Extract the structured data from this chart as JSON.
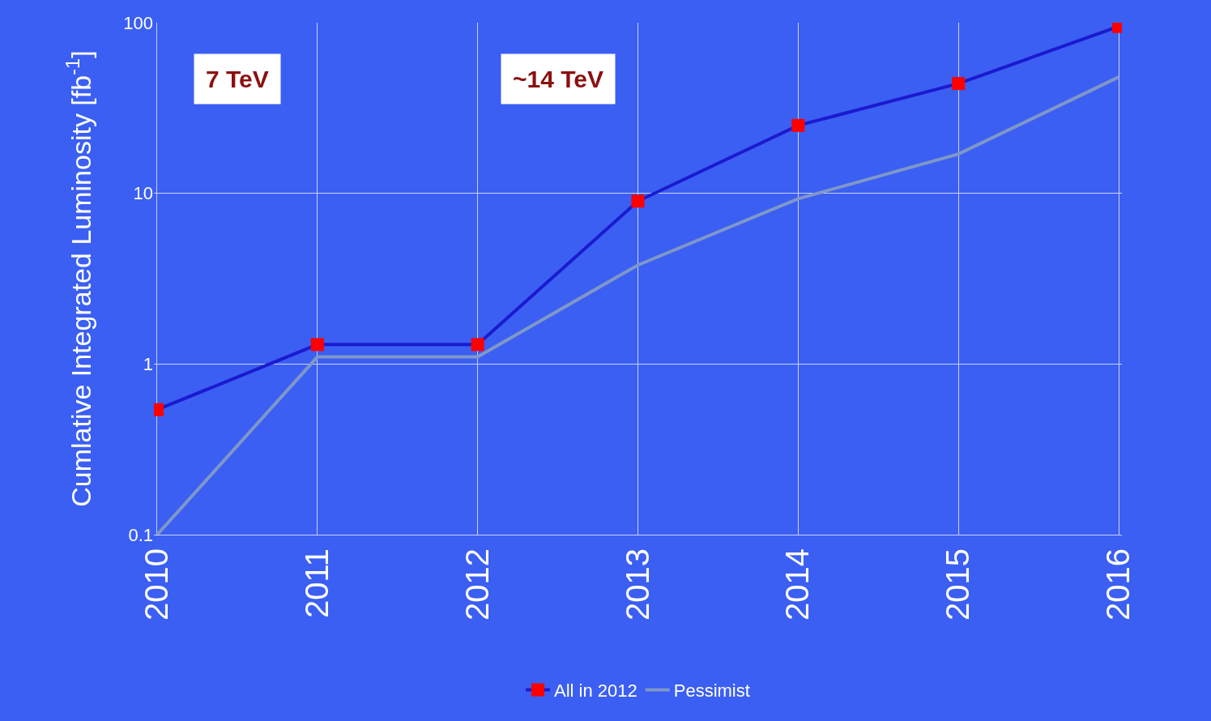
{
  "chart_data": {
    "type": "line",
    "ylabel": "Cumlative Integrated Luminosity [fb$^{-1}$]",
    "categories": [
      "2010",
      "2011",
      "2012",
      "2013",
      "2014",
      "2015",
      "2016"
    ],
    "series": [
      {
        "name": "All in 2012",
        "color": "#1a1ad0",
        "colors": [
          "#ff0000",
          "#ff0000",
          "#ff0000",
          "#ff0000",
          "#ff0000",
          "#ff0000",
          "#ff0000"
        ],
        "marker": "square",
        "values": [
          0.54,
          1.3,
          1.3,
          9,
          25,
          44,
          95
        ]
      },
      {
        "name": "Pessimist",
        "color": "#7f97c9",
        "marker": "none",
        "values": [
          0.1,
          1.1,
          1.1,
          3.8,
          9.3,
          17,
          48
        ]
      }
    ],
    "log": true,
    "ylim": [
      0.1,
      100
    ],
    "yticks": [
      0.1,
      1,
      10,
      100
    ],
    "grid": true,
    "legend": "bottom",
    "annotations": [
      "7 TeV",
      "~14 TeV"
    ]
  }
}
